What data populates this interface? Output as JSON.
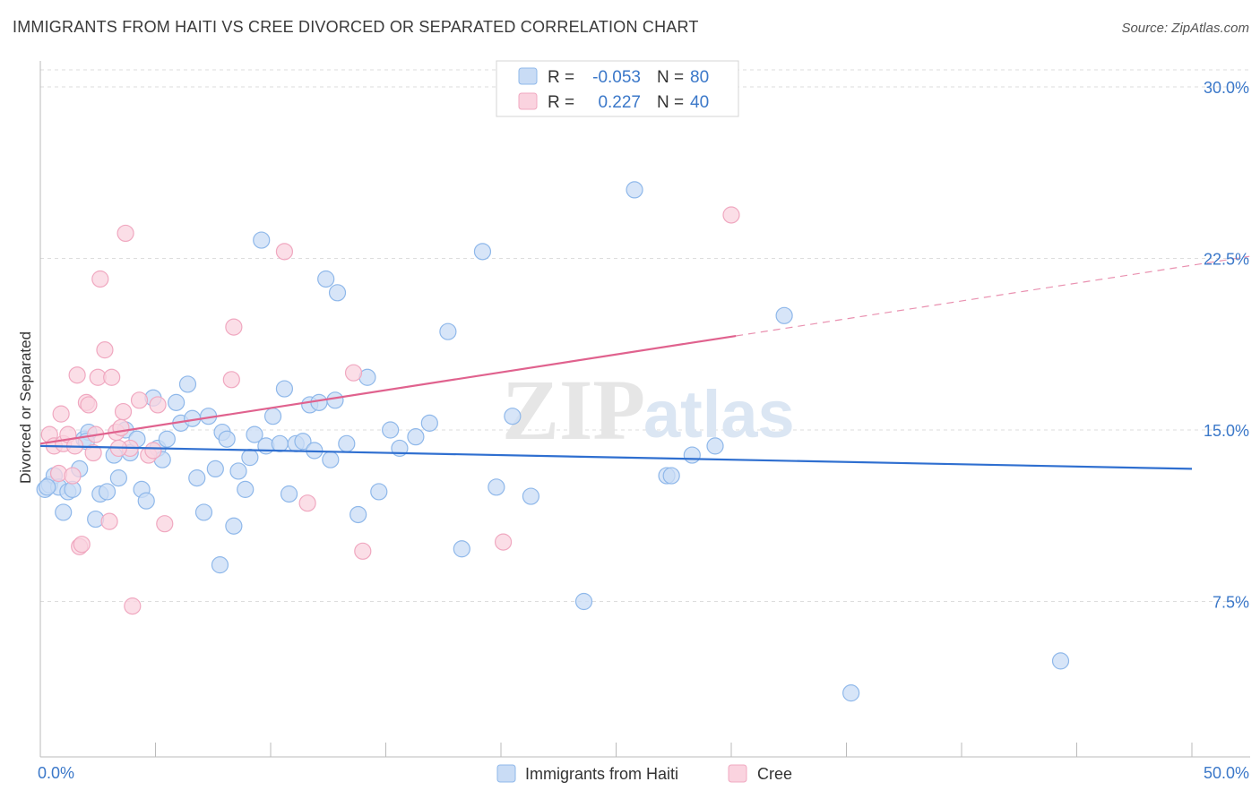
{
  "title": "IMMIGRANTS FROM HAITI VS CREE DIVORCED OR SEPARATED CORRELATION CHART",
  "source": "Source: ZipAtlas.com",
  "chart_data": {
    "type": "scatter",
    "ylabel": "Divorced or Separated",
    "xlim": [
      0,
      50
    ],
    "ylim": [
      0,
      31
    ],
    "x_tick_labels": [
      "0.0%",
      "50.0%"
    ],
    "y_ticks": [
      7.5,
      15.0,
      22.5,
      30.0
    ],
    "y_tick_labels": [
      "7.5%",
      "15.0%",
      "22.5%",
      "30.0%"
    ],
    "watermark": "ZIPatlas",
    "legend": [
      {
        "r_label": "R =",
        "r_value": "-0.053",
        "n_label": "N =",
        "n_value": "80"
      },
      {
        "r_label": "R =",
        "r_value": "0.227",
        "n_label": "N =",
        "n_value": "40"
      }
    ],
    "series": [
      {
        "name": "Immigrants from Haiti",
        "color": "#8fb8ea",
        "fill": "#c9dcf5",
        "line_color": "#2f6fd0",
        "trend": {
          "x0": 0,
          "y0": 14.3,
          "x1": 50,
          "y1": 13.3,
          "solid_to": 50
        },
        "points": [
          [
            0.2,
            12.4
          ],
          [
            0.4,
            12.6
          ],
          [
            0.6,
            13.0
          ],
          [
            0.8,
            12.5
          ],
          [
            1.0,
            11.4
          ],
          [
            1.2,
            12.3
          ],
          [
            1.4,
            12.4
          ],
          [
            1.7,
            13.3
          ],
          [
            1.9,
            14.6
          ],
          [
            2.1,
            14.9
          ],
          [
            2.4,
            11.1
          ],
          [
            2.6,
            12.2
          ],
          [
            2.9,
            12.3
          ],
          [
            3.2,
            13.9
          ],
          [
            3.4,
            12.9
          ],
          [
            3.7,
            15.0
          ],
          [
            3.9,
            14.0
          ],
          [
            4.2,
            14.6
          ],
          [
            4.4,
            12.4
          ],
          [
            4.6,
            11.9
          ],
          [
            4.9,
            16.4
          ],
          [
            5.1,
            14.2
          ],
          [
            5.3,
            13.7
          ],
          [
            5.5,
            14.6
          ],
          [
            5.9,
            16.2
          ],
          [
            6.1,
            15.3
          ],
          [
            6.4,
            17.0
          ],
          [
            6.6,
            15.5
          ],
          [
            6.8,
            12.9
          ],
          [
            7.1,
            11.4
          ],
          [
            7.3,
            15.6
          ],
          [
            7.6,
            13.3
          ],
          [
            7.9,
            14.9
          ],
          [
            8.1,
            14.6
          ],
          [
            8.4,
            10.8
          ],
          [
            8.6,
            13.2
          ],
          [
            8.9,
            12.4
          ],
          [
            9.1,
            13.8
          ],
          [
            9.3,
            14.8
          ],
          [
            9.6,
            23.3
          ],
          [
            9.8,
            14.3
          ],
          [
            10.1,
            15.6
          ],
          [
            10.4,
            14.4
          ],
          [
            10.6,
            16.8
          ],
          [
            10.8,
            12.2
          ],
          [
            11.1,
            14.4
          ],
          [
            11.4,
            14.5
          ],
          [
            11.7,
            16.1
          ],
          [
            11.9,
            14.1
          ],
          [
            12.1,
            16.2
          ],
          [
            12.4,
            21.6
          ],
          [
            12.6,
            13.7
          ],
          [
            12.8,
            16.3
          ],
          [
            13.3,
            14.4
          ],
          [
            13.8,
            11.3
          ],
          [
            14.2,
            17.3
          ],
          [
            14.7,
            12.3
          ],
          [
            15.2,
            15.0
          ],
          [
            15.6,
            14.2
          ],
          [
            16.3,
            14.7
          ],
          [
            16.9,
            15.3
          ],
          [
            17.7,
            19.3
          ],
          [
            18.3,
            9.8
          ],
          [
            19.2,
            22.8
          ],
          [
            19.8,
            12.5
          ],
          [
            20.5,
            15.6
          ],
          [
            21.3,
            12.1
          ],
          [
            23.6,
            7.5
          ],
          [
            25.8,
            25.5
          ],
          [
            27.2,
            13.0
          ],
          [
            27.4,
            13.0
          ],
          [
            28.3,
            13.9
          ],
          [
            29.3,
            14.3
          ],
          [
            32.3,
            20.0
          ],
          [
            35.2,
            3.5
          ],
          [
            44.3,
            4.9
          ],
          [
            0.3,
            12.5
          ],
          [
            7.8,
            9.1
          ],
          [
            2.0,
            14.5
          ],
          [
            12.9,
            21.0
          ]
        ]
      },
      {
        "name": "Cree",
        "color": "#f0a8c0",
        "fill": "#fad3df",
        "line_color": "#e0628e",
        "trend": {
          "x0": 0,
          "y0": 14.4,
          "x1": 50,
          "y1": 22.2,
          "solid_to": 30.2
        },
        "points": [
          [
            0.4,
            14.8
          ],
          [
            0.6,
            14.3
          ],
          [
            0.8,
            13.1
          ],
          [
            1.0,
            14.4
          ],
          [
            1.2,
            14.8
          ],
          [
            1.4,
            13.0
          ],
          [
            1.6,
            17.4
          ],
          [
            1.7,
            9.9
          ],
          [
            1.8,
            10.0
          ],
          [
            2.0,
            16.2
          ],
          [
            2.1,
            16.1
          ],
          [
            2.3,
            14.0
          ],
          [
            2.5,
            17.3
          ],
          [
            2.6,
            21.6
          ],
          [
            2.8,
            18.5
          ],
          [
            3.0,
            11.0
          ],
          [
            3.1,
            17.3
          ],
          [
            3.3,
            14.9
          ],
          [
            3.5,
            15.1
          ],
          [
            3.6,
            15.8
          ],
          [
            3.7,
            23.6
          ],
          [
            3.9,
            14.2
          ],
          [
            4.0,
            7.3
          ],
          [
            4.3,
            16.3
          ],
          [
            4.7,
            13.9
          ],
          [
            4.9,
            14.1
          ],
          [
            5.1,
            16.1
          ],
          [
            5.4,
            10.9
          ],
          [
            8.3,
            17.2
          ],
          [
            8.4,
            19.5
          ],
          [
            10.6,
            22.8
          ],
          [
            11.6,
            11.8
          ],
          [
            13.6,
            17.5
          ],
          [
            14.0,
            9.7
          ],
          [
            20.1,
            10.1
          ],
          [
            30.0,
            24.4
          ],
          [
            0.9,
            15.7
          ],
          [
            2.4,
            14.8
          ],
          [
            1.5,
            14.3
          ],
          [
            3.4,
            14.2
          ]
        ]
      }
    ]
  },
  "bottom_legend": [
    "Immigrants from Haiti",
    "Cree"
  ]
}
